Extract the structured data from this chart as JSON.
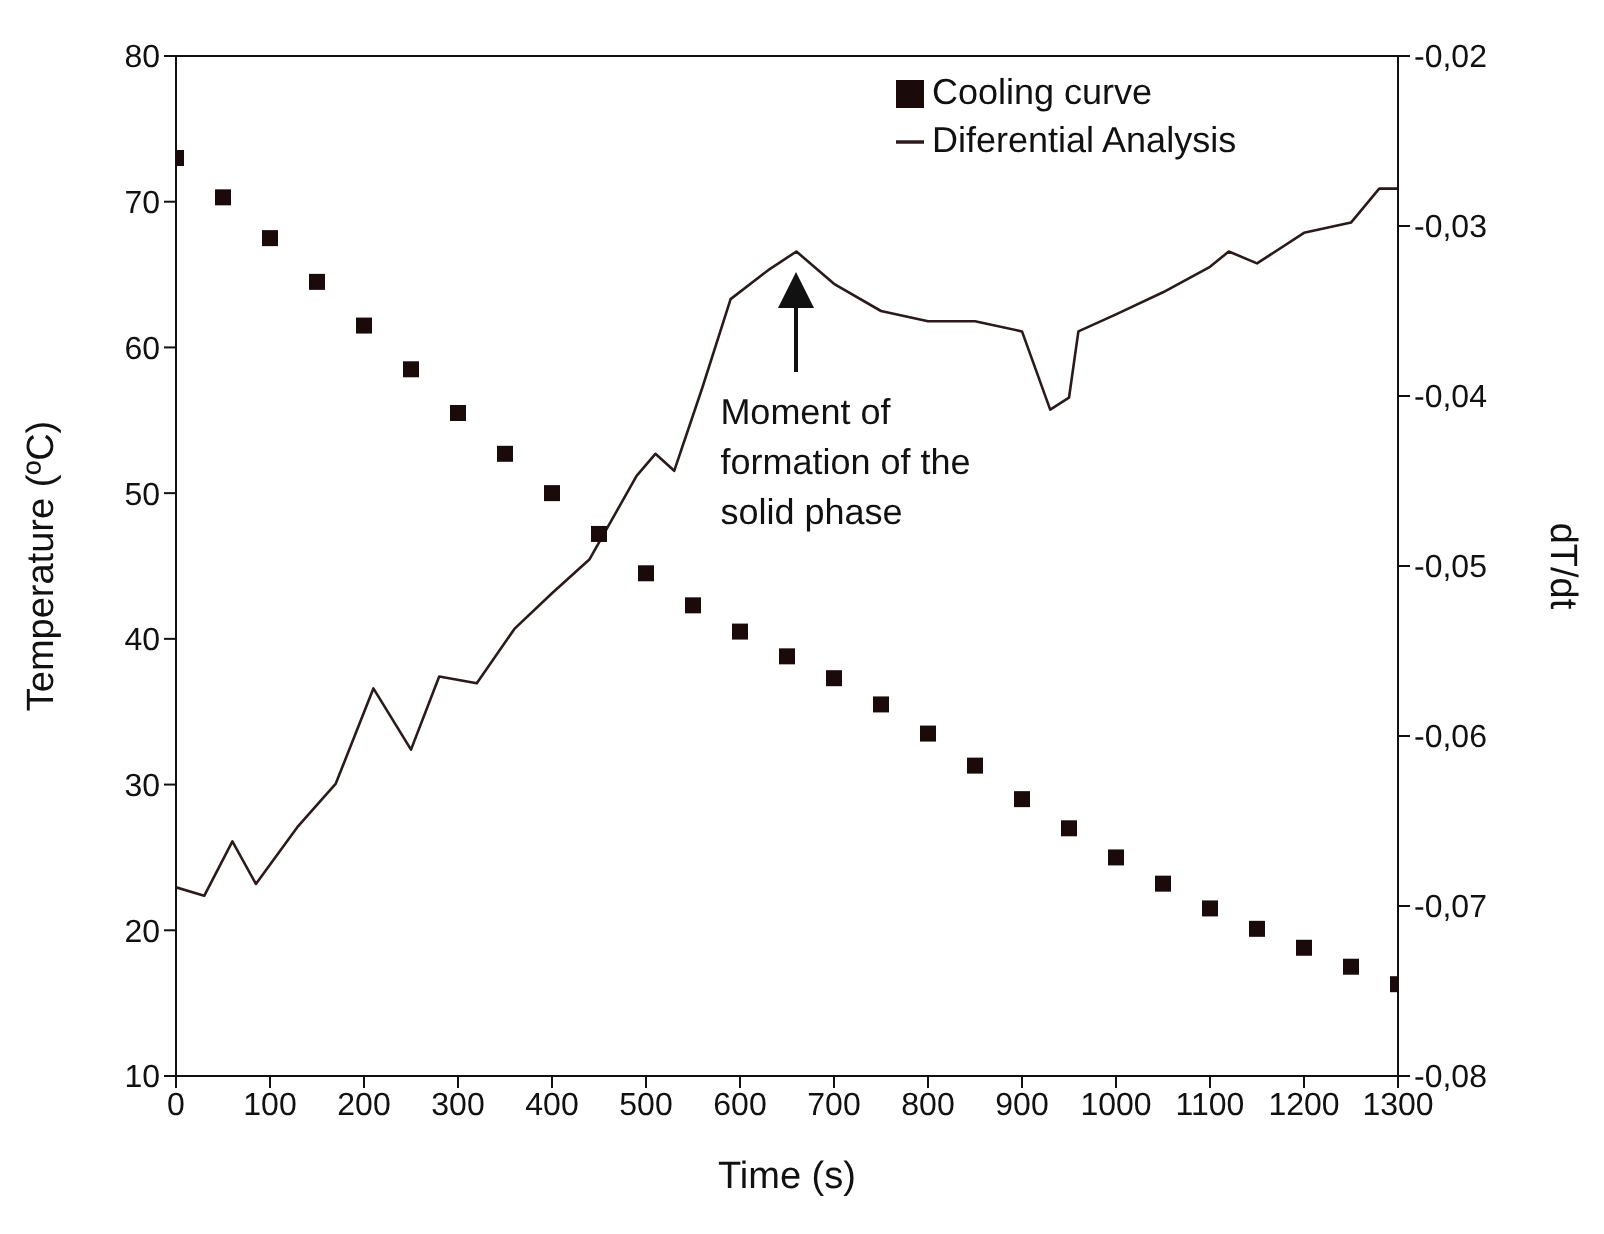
{
  "chart_data": {
    "type": "line",
    "xlabel": "Time (s)",
    "ylabel": "Temperature (ºC)",
    "y2label": "dT/dt",
    "xlim": [
      0,
      1300
    ],
    "xticks": [
      0,
      100,
      200,
      300,
      400,
      500,
      600,
      700,
      800,
      900,
      1000,
      1100,
      1200,
      1300
    ],
    "ylim": [
      10,
      80
    ],
    "yticks": [
      10,
      20,
      30,
      40,
      50,
      60,
      70,
      80
    ],
    "y2lim": [
      -0.08,
      -0.02
    ],
    "y2ticks": [
      {
        "value": -0.08,
        "label": "-0,08"
      },
      {
        "value": -0.07,
        "label": "-0,07"
      },
      {
        "value": -0.06,
        "label": "-0,06"
      },
      {
        "value": -0.05,
        "label": "-0,05"
      },
      {
        "value": -0.04,
        "label": "-0,04"
      },
      {
        "value": -0.03,
        "label": "-0,03"
      },
      {
        "value": -0.02,
        "label": "-0,02"
      }
    ],
    "legend": "top right",
    "grid": false,
    "annotations": [
      "Moment of formation of the solid phase"
    ],
    "series": [
      {
        "name": "Cooling curve",
        "type": "scatter",
        "marker": "square",
        "color": "#1a0a0a",
        "x": [
          0,
          50,
          100,
          150,
          200,
          250,
          300,
          350,
          400,
          450,
          500,
          550,
          600,
          650,
          700,
          750,
          800,
          850,
          900,
          950,
          1000,
          1050,
          1100,
          1150,
          1200,
          1250,
          1300
        ],
        "values": [
          73,
          70.3,
          67.5,
          64.5,
          61.5,
          58.5,
          55.5,
          52.7,
          50,
          47.2,
          44.5,
          42.3,
          40.5,
          38.8,
          37.3,
          35.5,
          33.5,
          31.3,
          29,
          27,
          25,
          23.2,
          21.5,
          20.1,
          18.8,
          17.5,
          16.3
        ]
      },
      {
        "name": "Diferential Analysis",
        "axis": "y2",
        "marker": "none",
        "line_style": "solid",
        "color": "#2a1a1a",
        "x": [
          0,
          30,
          60,
          85,
          130,
          170,
          210,
          250,
          280,
          320,
          360,
          400,
          440,
          490,
          510,
          530,
          560,
          590,
          630,
          660,
          700,
          750,
          800,
          850,
          900,
          930,
          950,
          960,
          1000,
          1050,
          1100,
          1120,
          1150,
          1200,
          1250,
          1280,
          1300
        ],
        "values": [
          -0.0689,
          -0.0694,
          -0.0662,
          -0.0687,
          -0.0653,
          -0.0628,
          -0.0572,
          -0.0608,
          -0.0565,
          -0.0569,
          -0.0537,
          -0.0516,
          -0.0496,
          -0.0447,
          -0.0434,
          -0.0444,
          -0.0395,
          -0.0343,
          -0.0326,
          -0.0315,
          -0.0334,
          -0.035,
          -0.0356,
          -0.0356,
          -0.0362,
          -0.0408,
          -0.0401,
          -0.0362,
          -0.0352,
          -0.0339,
          -0.0324,
          -0.0315,
          -0.0322,
          -0.0304,
          -0.0298,
          -0.0278,
          -0.0278
        ]
      }
    ]
  }
}
